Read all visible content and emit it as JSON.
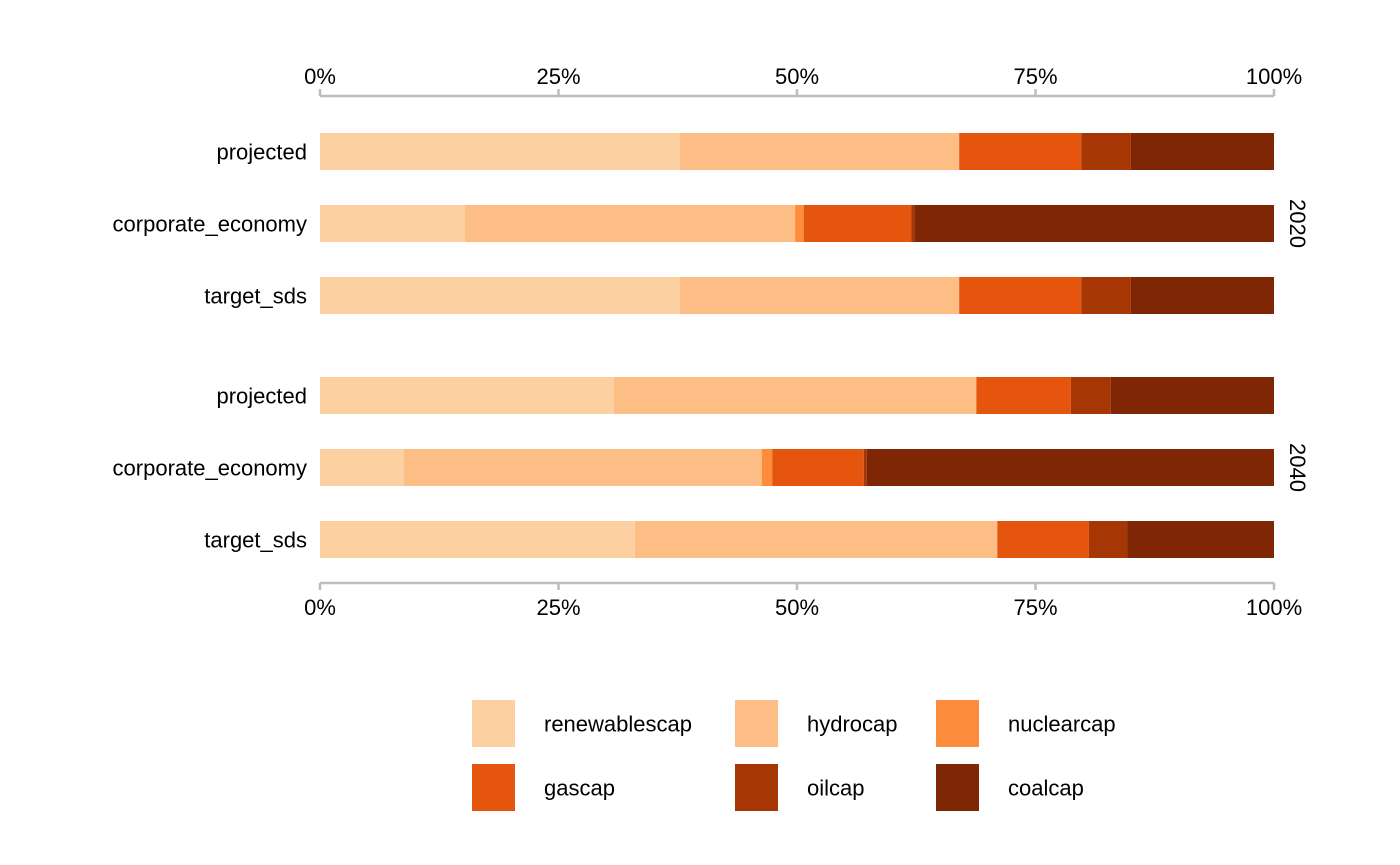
{
  "chart_data": {
    "type": "bar",
    "orientation": "horizontal",
    "stacked": true,
    "percent": true,
    "xlim": [
      0,
      1
    ],
    "x_ticks": [
      0,
      0.25,
      0.5,
      0.75,
      1
    ],
    "x_tick_labels": [
      "0%",
      "25%",
      "50%",
      "75%",
      "100%"
    ],
    "axis_position": "top and bottom",
    "grid": false,
    "legend_position": "bottom",
    "series": [
      {
        "name": "renewablescap",
        "color": "#FDD0A2"
      },
      {
        "name": "hydrocap",
        "color": "#FDBE85"
      },
      {
        "name": "nuclearcap",
        "color": "#FD8D3C"
      },
      {
        "name": "gascap",
        "color": "#E6550D"
      },
      {
        "name": "oilcap",
        "color": "#A63603"
      },
      {
        "name": "coalcap",
        "color": "#7F2704"
      }
    ],
    "facets": [
      {
        "label": "2020",
        "bars": [
          {
            "category": "projected",
            "values": [
              0.377,
              0.293,
              0.0,
              0.128,
              0.052,
              0.15
            ]
          },
          {
            "category": "corporate_economy",
            "values": [
              0.152,
              0.346,
              0.009,
              0.113,
              0.003,
              0.377
            ]
          },
          {
            "category": "target_sds",
            "values": [
              0.377,
              0.293,
              0.0,
              0.128,
              0.052,
              0.15
            ]
          }
        ]
      },
      {
        "label": "2040",
        "bars": [
          {
            "category": "projected",
            "values": [
              0.308,
              0.38,
              0.0,
              0.099,
              0.042,
              0.171
            ]
          },
          {
            "category": "corporate_economy",
            "values": [
              0.088,
              0.375,
              0.011,
              0.096,
              0.003,
              0.427
            ]
          },
          {
            "category": "target_sds",
            "values": [
              0.33,
              0.38,
              0.0,
              0.096,
              0.04,
              0.154
            ]
          }
        ]
      }
    ]
  }
}
